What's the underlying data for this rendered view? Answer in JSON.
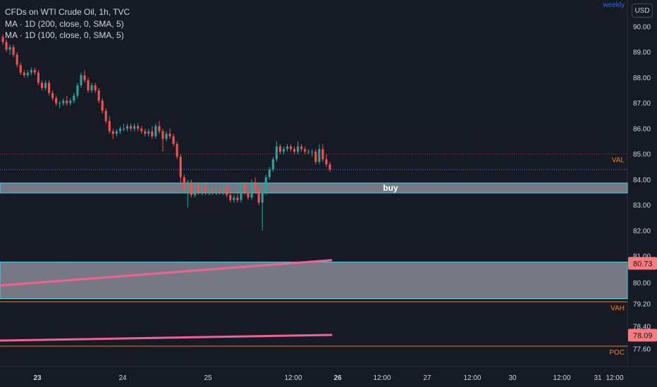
{
  "header": {
    "title": "CFDs on WTI Crude Oil, 1h, TVC",
    "indicators": [
      "MA · 1D (200, close, 0, SMA, 5)",
      "MA · 1D (100, close, 0, SMA, 5)"
    ],
    "timeframe_label": "weekly",
    "currency": "USD"
  },
  "colors": {
    "background": "#161a25",
    "up": "#26a69a",
    "down": "#ef5350",
    "ma": "#f06292",
    "level_line": "#f57f17",
    "zone_fill": "#b2b5be",
    "zone_border": "#4dd0e1",
    "dotted_red": "#b03a3a",
    "dotted_blue": "#5c6bc0",
    "text": "#d1d4dc"
  },
  "chart_data": {
    "type": "candlestick",
    "symbol": "CFDs on WTI Crude Oil",
    "interval": "1h",
    "y_axis": {
      "ticks": [
        90.0,
        89.0,
        88.0,
        87.0,
        86.0,
        85.0,
        84.0,
        83.0,
        82.0,
        81.0,
        80.0,
        79.2,
        78.4,
        77.6
      ],
      "tick_labels": [
        "90.00",
        "89.00",
        "88.00",
        "87.00",
        "86.00",
        "85.00",
        "84.00",
        "83.00",
        "82.00",
        "81.00",
        "80.00",
        "79.20",
        "78.40",
        "77.60"
      ]
    },
    "x_axis": {
      "tick_labels": [
        "23",
        "24",
        "25",
        "12:00",
        "26",
        "12:00",
        "27",
        "12:00",
        "30",
        "12:00",
        "31",
        "12:00"
      ],
      "bold_labels": [
        "23",
        "26"
      ]
    },
    "candles": [
      [
        89.6,
        89.7,
        89.3,
        89.4
      ],
      [
        89.4,
        89.5,
        89.0,
        89.1
      ],
      [
        89.1,
        89.3,
        88.9,
        89.2
      ],
      [
        89.2,
        89.3,
        88.8,
        88.9
      ],
      [
        88.9,
        89.0,
        88.4,
        88.5
      ],
      [
        88.5,
        88.6,
        88.1,
        88.2
      ],
      [
        88.2,
        88.3,
        88.0,
        88.1
      ],
      [
        88.1,
        88.3,
        88.0,
        88.2
      ],
      [
        88.2,
        88.4,
        88.1,
        88.3
      ],
      [
        88.3,
        88.4,
        88.1,
        88.2
      ],
      [
        88.2,
        88.3,
        87.7,
        87.8
      ],
      [
        87.8,
        87.9,
        87.5,
        87.6
      ],
      [
        87.6,
        87.9,
        87.5,
        87.8
      ],
      [
        87.8,
        87.9,
        87.3,
        87.4
      ],
      [
        87.4,
        87.5,
        87.1,
        87.2
      ],
      [
        87.2,
        87.3,
        86.9,
        87.0
      ],
      [
        87.0,
        87.1,
        86.8,
        87.0
      ],
      [
        87.0,
        87.2,
        86.9,
        87.1
      ],
      [
        87.1,
        87.3,
        86.9,
        87.0
      ],
      [
        87.0,
        87.2,
        86.9,
        87.1
      ],
      [
        87.1,
        87.4,
        87.0,
        87.3
      ],
      [
        87.3,
        87.8,
        87.2,
        87.7
      ],
      [
        87.7,
        88.2,
        87.6,
        88.1
      ],
      [
        88.1,
        88.3,
        87.8,
        87.9
      ],
      [
        87.9,
        88.0,
        87.4,
        87.5
      ],
      [
        87.5,
        87.8,
        87.4,
        87.7
      ],
      [
        87.7,
        87.8,
        87.4,
        87.5
      ],
      [
        87.5,
        87.6,
        87.0,
        87.1
      ],
      [
        87.1,
        87.2,
        86.6,
        86.7
      ],
      [
        86.7,
        86.8,
        86.2,
        86.3
      ],
      [
        86.3,
        86.5,
        85.8,
        85.9
      ],
      [
        85.9,
        86.0,
        85.6,
        85.8
      ],
      [
        85.8,
        86.0,
        85.7,
        85.9
      ],
      [
        85.9,
        86.1,
        85.8,
        86.0
      ],
      [
        86.0,
        86.2,
        85.9,
        86.0
      ],
      [
        86.0,
        86.2,
        85.9,
        86.1
      ],
      [
        86.1,
        86.2,
        85.9,
        86.0
      ],
      [
        86.0,
        86.2,
        85.9,
        86.1
      ],
      [
        86.1,
        86.2,
        85.9,
        86.0
      ],
      [
        86.0,
        86.1,
        85.8,
        85.9
      ],
      [
        85.9,
        86.0,
        85.7,
        85.8
      ],
      [
        85.8,
        86.0,
        85.7,
        85.9
      ],
      [
        85.9,
        86.1,
        85.6,
        85.7
      ],
      [
        85.7,
        86.2,
        85.6,
        86.1
      ],
      [
        86.1,
        86.3,
        85.8,
        85.9
      ],
      [
        85.9,
        86.0,
        85.1,
        85.6
      ],
      [
        85.6,
        85.9,
        85.5,
        85.8
      ],
      [
        85.8,
        86.0,
        85.6,
        85.7
      ],
      [
        85.7,
        85.8,
        85.3,
        85.4
      ],
      [
        85.4,
        85.5,
        84.8,
        84.9
      ],
      [
        84.9,
        85.0,
        83.9,
        84.1
      ],
      [
        84.1,
        84.2,
        83.5,
        83.6
      ],
      [
        83.6,
        84.0,
        82.9,
        83.9
      ],
      [
        83.9,
        84.0,
        83.3,
        83.4
      ],
      [
        83.4,
        83.9,
        83.3,
        83.8
      ],
      [
        83.8,
        83.9,
        83.4,
        83.5
      ],
      [
        83.5,
        83.8,
        83.4,
        83.7
      ],
      [
        83.7,
        83.9,
        83.4,
        83.5
      ],
      [
        83.5,
        83.7,
        83.4,
        83.6
      ],
      [
        83.6,
        83.8,
        83.4,
        83.5
      ],
      [
        83.5,
        83.7,
        83.4,
        83.6
      ],
      [
        83.6,
        83.7,
        83.4,
        83.5
      ],
      [
        83.5,
        83.8,
        83.4,
        83.7
      ],
      [
        83.7,
        83.8,
        83.3,
        83.4
      ],
      [
        83.4,
        83.5,
        83.1,
        83.2
      ],
      [
        83.2,
        83.4,
        83.1,
        83.3
      ],
      [
        83.3,
        83.5,
        83.1,
        83.2
      ],
      [
        83.2,
        83.9,
        83.1,
        83.8
      ],
      [
        83.8,
        83.9,
        83.4,
        83.5
      ],
      [
        83.5,
        83.6,
        83.2,
        83.3
      ],
      [
        83.3,
        84.0,
        83.2,
        83.9
      ],
      [
        83.9,
        84.1,
        83.5,
        83.6
      ],
      [
        83.6,
        83.7,
        83.0,
        83.1
      ],
      [
        83.1,
        83.6,
        82.0,
        83.5
      ],
      [
        83.5,
        84.2,
        83.4,
        84.1
      ],
      [
        84.1,
        84.5,
        84.0,
        84.4
      ],
      [
        84.4,
        84.9,
        84.3,
        84.8
      ],
      [
        84.8,
        85.5,
        84.7,
        85.3
      ],
      [
        85.3,
        85.4,
        85.0,
        85.1
      ],
      [
        85.1,
        85.3,
        85.0,
        85.2
      ],
      [
        85.2,
        85.4,
        85.1,
        85.3
      ],
      [
        85.3,
        85.4,
        85.1,
        85.2
      ],
      [
        85.2,
        85.3,
        85.0,
        85.1
      ],
      [
        85.1,
        85.5,
        85.0,
        85.3
      ],
      [
        85.3,
        85.4,
        85.1,
        85.2
      ],
      [
        85.2,
        85.3,
        85.0,
        85.1
      ],
      [
        85.1,
        85.2,
        85.0,
        85.1
      ],
      [
        85.1,
        85.2,
        84.9,
        85.1
      ],
      [
        85.1,
        85.2,
        84.6,
        84.7
      ],
      [
        84.7,
        85.4,
        84.6,
        85.2
      ],
      [
        85.2,
        85.4,
        84.7,
        84.8
      ],
      [
        84.8,
        85.0,
        84.5,
        84.6
      ],
      [
        84.6,
        84.7,
        84.3,
        84.4
      ]
    ],
    "moving_averages": [
      {
        "name": "MA · 1D (200, close, 0, SMA, 5)",
        "start": 79.9,
        "end": 80.85
      },
      {
        "name": "MA · 1D (100, close, 0, SMA, 5)",
        "start": 77.9,
        "end": 78.1
      }
    ],
    "zones": [
      {
        "label": "buy",
        "top": 83.87,
        "bottom": 83.48
      },
      {
        "label": "",
        "top": 80.78,
        "bottom": 79.4
      }
    ],
    "levels": [
      {
        "label": "VAL",
        "price": 85.01,
        "style": "dotted"
      },
      {
        "label": "",
        "price": 84.4,
        "style": "dotted"
      },
      {
        "label": "VAH",
        "price": 79.28,
        "style": "solid"
      },
      {
        "label": "POC",
        "price": 77.7,
        "style": "solid"
      }
    ],
    "price_tags": [
      {
        "label": "80.73",
        "price": 80.73
      },
      {
        "label": "78.09",
        "price": 78.09
      }
    ]
  }
}
